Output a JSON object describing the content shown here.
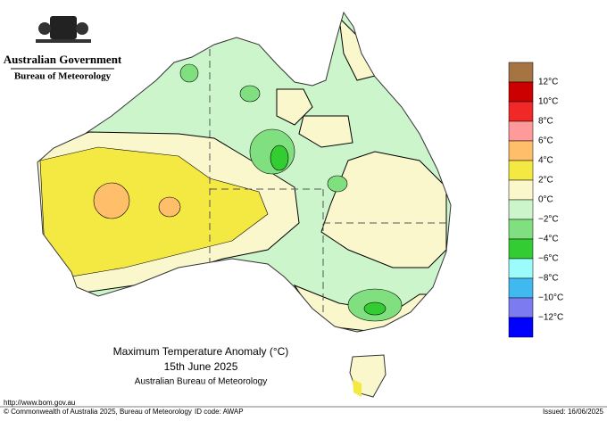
{
  "header": {
    "government": "Australian Government",
    "agency": "Bureau of Meteorology"
  },
  "map": {
    "title": "Maximum Temperature Anomaly (°C)",
    "date": "15th June 2025",
    "source": "Australian Bureau of Meteorology"
  },
  "legend": {
    "colors": [
      "#a57442",
      "#cc0000",
      "#f02828",
      "#ff9a9a",
      "#ffbf6a",
      "#f4e842",
      "#fbf7cc",
      "#ccf5cc",
      "#80e080",
      "#33cc33",
      "#9cfcfc",
      "#40b8f0",
      "#7c7cf0",
      "#0000ff"
    ],
    "labels": [
      "12°C",
      "10°C",
      "8°C",
      "6°C",
      "4°C",
      "2°C",
      "0°C",
      "−2°C",
      "−4°C",
      "−6°C",
      "−8°C",
      "−10°C",
      "−12°C"
    ]
  },
  "footer": {
    "url": "http://www.bom.gov.au",
    "copyright": "© Commonwealth of Australia 2025, Bureau of Meteorology",
    "id_code": "ID code: AWAP",
    "issued": "Issued: 16/06/2025"
  }
}
